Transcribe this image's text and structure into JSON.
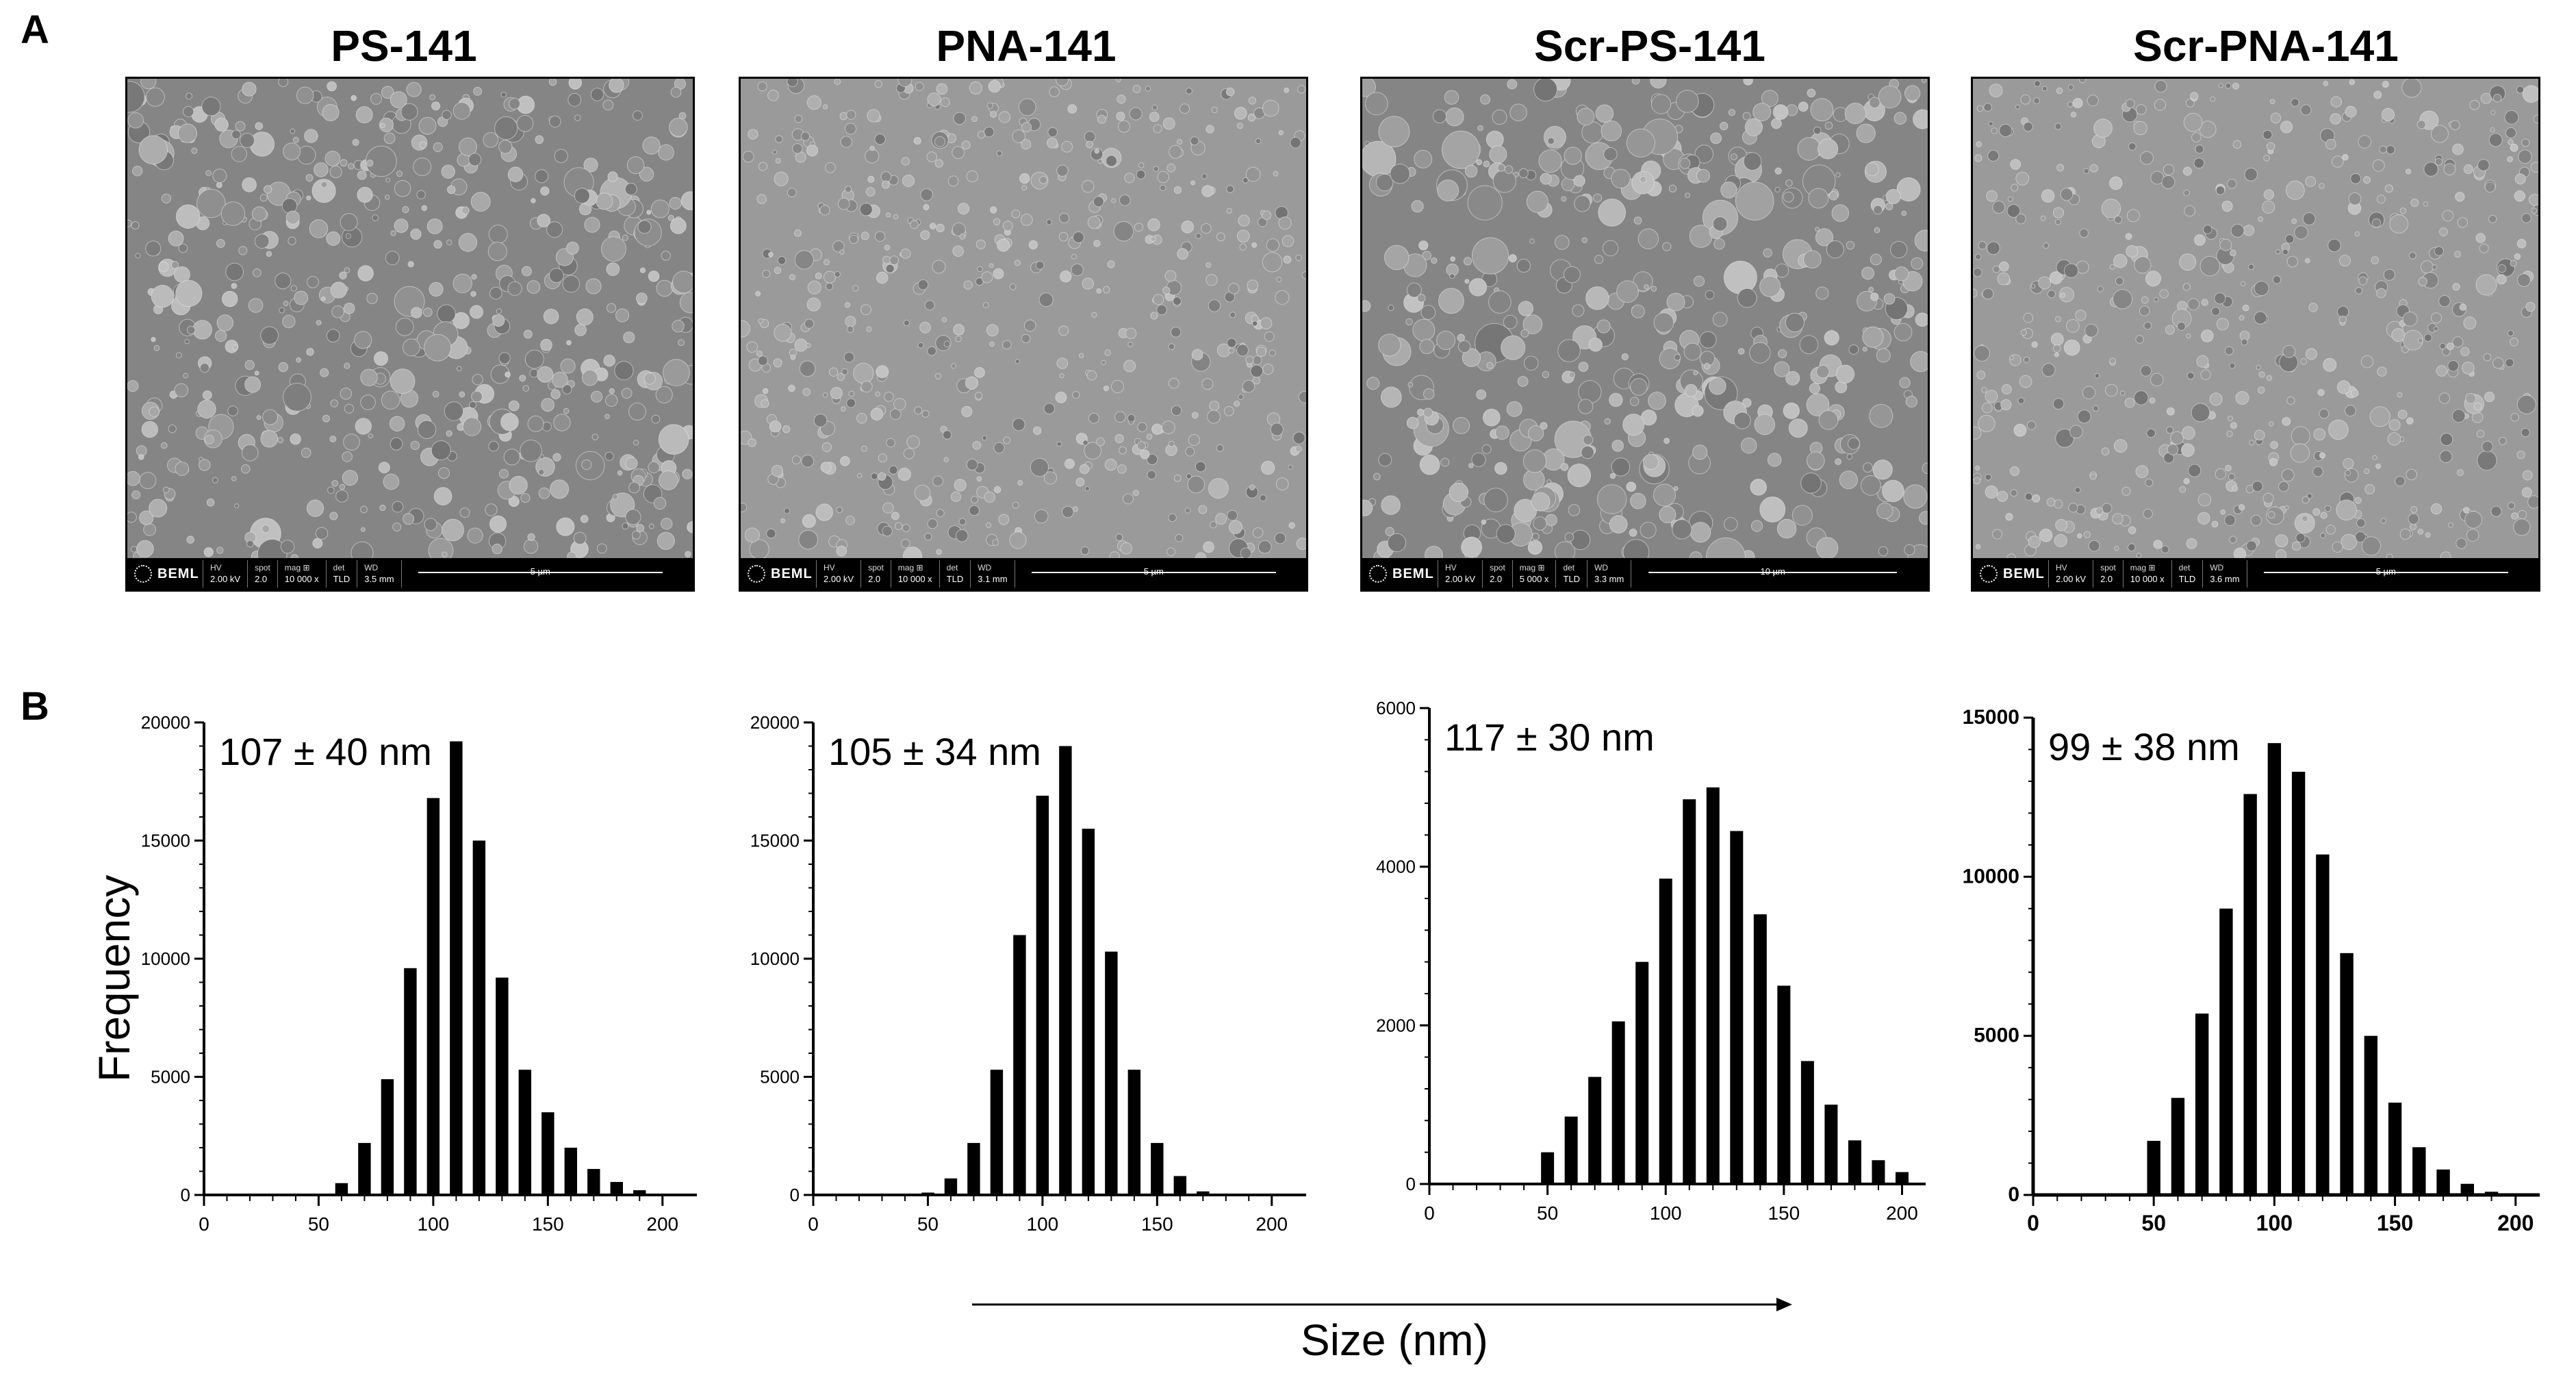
{
  "panels": {
    "a": "A",
    "b": "B"
  },
  "sem": [
    {
      "title": "PS-141",
      "logo": "BEML",
      "hv": "2.00 kV",
      "spot": "2.0",
      "mag": "10 000 x",
      "det": "TLD",
      "wd": "3.5 mm",
      "scale": "5 µm"
    },
    {
      "title": "PNA-141",
      "logo": "BEML",
      "hv": "2.00 kV",
      "spot": "2.0",
      "mag": "10 000 x",
      "det": "TLD",
      "wd": "3.1 mm",
      "scale": "5 µm"
    },
    {
      "title": "Scr-PS-141",
      "logo": "BEML",
      "hv": "2.00 kV",
      "spot": "2.0",
      "mag": "5 000 x",
      "det": "TLD",
      "wd": "3.3 mm",
      "scale": "10 µm"
    },
    {
      "title": "Scr-PNA-141",
      "logo": "BEML",
      "hv": "2.00 kV",
      "spot": "2.0",
      "mag": "10 000 x",
      "det": "TLD",
      "wd": "3.6 mm",
      "scale": "5 µm"
    }
  ],
  "sem_labels": {
    "hv": "HV",
    "spot": "spot",
    "mag": "mag ⊞",
    "det": "det",
    "wd": "WD"
  },
  "axis_labels": {
    "y": "Frequency",
    "x": "Size (nm)"
  },
  "colors": {
    "bar": "#000000",
    "sem_bg": "#8a8a8a"
  },
  "chart_data": [
    {
      "type": "bar",
      "annotation": "107 ± 40 nm",
      "x": [
        60,
        70,
        80,
        90,
        100,
        110,
        120,
        130,
        140,
        150,
        160,
        170,
        180,
        190
      ],
      "values": [
        500,
        2200,
        4900,
        9600,
        16800,
        19200,
        15000,
        9200,
        5300,
        3500,
        2000,
        1100,
        550,
        200
      ],
      "xlim": [
        0,
        215
      ],
      "ylim": [
        0,
        20000
      ],
      "xticks": [
        "0",
        "50",
        "100",
        "150",
        "200"
      ],
      "yticks": [
        "0",
        "5000",
        "10000",
        "15000",
        "20000"
      ],
      "xlabel": "Size (nm)",
      "ylabel": "Frequency"
    },
    {
      "type": "bar",
      "annotation": "105 ± 34 nm",
      "x": [
        50,
        60,
        70,
        80,
        90,
        100,
        110,
        120,
        130,
        140,
        150,
        160,
        170
      ],
      "values": [
        100,
        700,
        2200,
        5300,
        11000,
        16900,
        19000,
        15500,
        10300,
        5300,
        2200,
        800,
        150
      ],
      "xlim": [
        0,
        215
      ],
      "ylim": [
        0,
        20000
      ],
      "xticks": [
        "0",
        "50",
        "100",
        "150",
        "200"
      ],
      "yticks": [
        "0",
        "5000",
        "10000",
        "15000",
        "20000"
      ],
      "xlabel": "Size (nm)",
      "ylabel": "Frequency"
    },
    {
      "type": "bar",
      "annotation": "117 ± 30 nm",
      "x": [
        50,
        60,
        70,
        80,
        90,
        100,
        110,
        120,
        130,
        140,
        150,
        160,
        170,
        180,
        190,
        200
      ],
      "values": [
        400,
        850,
        1350,
        2050,
        2800,
        3850,
        4850,
        5000,
        4450,
        3400,
        2500,
        1550,
        1000,
        550,
        300,
        150
      ],
      "xlim": [
        0,
        210
      ],
      "ylim": [
        0,
        6000
      ],
      "xticks": [
        "0",
        "50",
        "100",
        "150",
        "200"
      ],
      "yticks": [
        "0",
        "2000",
        "4000",
        "6000"
      ],
      "xlabel": "Size (nm)",
      "ylabel": "Frequency"
    },
    {
      "type": "bar",
      "annotation": "99 ± 38 nm",
      "x": [
        50,
        60,
        70,
        80,
        90,
        100,
        110,
        120,
        130,
        140,
        150,
        160,
        170,
        180,
        190
      ],
      "values": [
        1700,
        3050,
        5700,
        9000,
        12600,
        14200,
        13300,
        10700,
        7600,
        5000,
        2900,
        1500,
        800,
        350,
        100
      ],
      "xlim": [
        0,
        210
      ],
      "ylim": [
        0,
        15000
      ],
      "xticks": [
        "0",
        "50",
        "100",
        "150",
        "200"
      ],
      "yticks": [
        "0",
        "5000",
        "10000",
        "15000"
      ],
      "xlabel": "Size (nm)",
      "ylabel": "Frequency"
    }
  ]
}
